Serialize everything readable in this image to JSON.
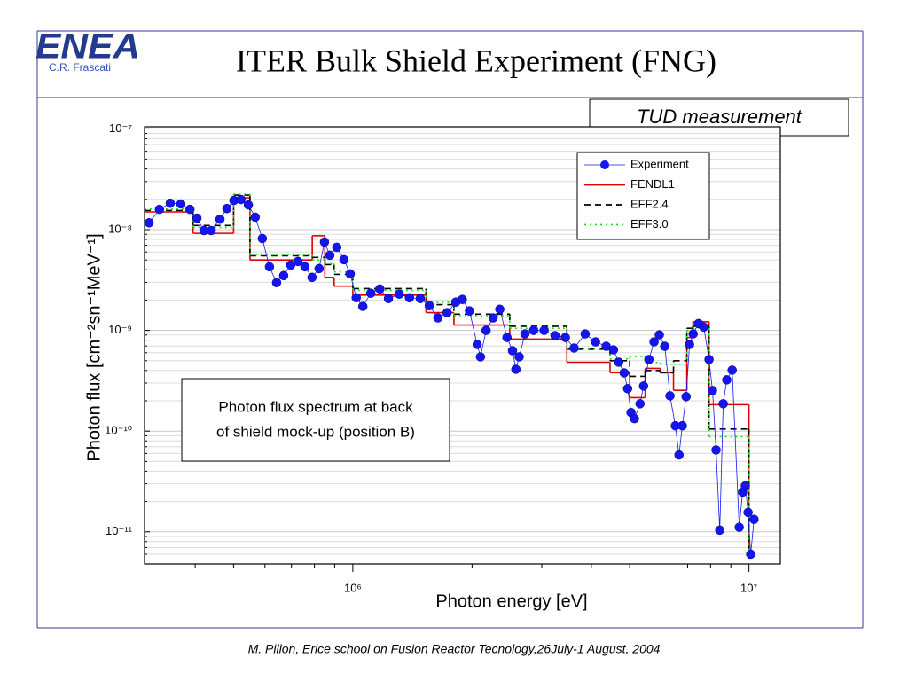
{
  "header": {
    "logo": "ENEA",
    "logo_subtitle": "C.R. Frascati",
    "title": "ITER Bulk Shield Experiment (FNG)"
  },
  "tag": "TUD measurement",
  "footer": "M. Pillon, Erice school on Fusion Reactor Tecnology,26July-1 August, 2004",
  "chart_data": {
    "type": "line",
    "x_label": "Photon energy [eV]",
    "y_label": "Photon flux [cm⁻²sn⁻¹MeV⁻¹]",
    "annotation": [
      "Photon flux spectrum at back",
      "of shield mock-up (position B)"
    ],
    "x_log": true,
    "y_log": true,
    "grid": true,
    "legend": "upper right",
    "xlim": [
      298000,
      12000000
    ],
    "ylim": [
      4.8e-12,
      1.05e-07
    ],
    "xticks": [
      {
        "value": 1000000,
        "label": "10⁶"
      },
      {
        "value": 10000000,
        "label": "10⁷"
      }
    ],
    "xminorticks": [
      400000,
      500000,
      600000,
      700000,
      800000,
      900000,
      2000000,
      3000000,
      4000000,
      5000000,
      6000000,
      7000000,
      8000000,
      9000000
    ],
    "yticks": [
      {
        "value": 1e-07,
        "label": "10⁻⁷"
      },
      {
        "value": 1e-08,
        "label": "10⁻⁸"
      },
      {
        "value": 1e-09,
        "label": "10⁻⁹"
      },
      {
        "value": 1e-10,
        "label": "10⁻¹⁰"
      },
      {
        "value": 1e-11,
        "label": "10⁻¹¹"
      }
    ],
    "yminorticks": [
      6e-12,
      7e-12,
      8e-12,
      9e-12,
      2e-11,
      3e-11,
      4e-11,
      5e-11,
      6e-11,
      7e-11,
      8e-11,
      9e-11,
      2e-10,
      3e-10,
      4e-10,
      5e-10,
      6e-10,
      7e-10,
      8e-10,
      9e-10,
      2e-09,
      3e-09,
      4e-09,
      5e-09,
      6e-09,
      7e-09,
      8e-09,
      9e-09,
      2e-08,
      3e-08,
      4e-08,
      5e-08,
      6e-08,
      7e-08,
      8e-08,
      9e-08
    ],
    "series": [
      {
        "name": "Experiment",
        "color": "#1515f0",
        "style": "markers",
        "x": [
          306000,
          325000,
          346000,
          368000,
          388000,
          404000,
          421000,
          439000,
          462000,
          481000,
          501000,
          522000,
          545000,
          567000,
          591000,
          616000,
          642000,
          669000,
          697000,
          727000,
          757000,
          789000,
          822000,
          848000,
          875000,
          911000,
          950000,
          985000,
          1020000,
          1060000,
          1110000,
          1170000,
          1230000,
          1310000,
          1390000,
          1480000,
          1560000,
          1640000,
          1730000,
          1820000,
          1890000,
          1970000,
          2060000,
          2100000,
          2170000,
          2260000,
          2350000,
          2450000,
          2530000,
          2580000,
          2630000,
          2720000,
          2860000,
          3040000,
          3240000,
          3440000,
          3620000,
          3860000,
          4100000,
          4360000,
          4550000,
          4690000,
          4840000,
          4940000,
          5040000,
          5140000,
          5310000,
          5420000,
          5590000,
          5760000,
          5940000,
          6130000,
          6320000,
          6520000,
          6660000,
          6790000,
          6940000,
          7080000,
          7230000,
          7460000,
          7690000,
          7930000,
          8090000,
          8260000,
          8440000,
          8610000,
          8790000,
          9070000,
          9450000,
          9640000,
          9790000,
          9950000,
          10100000,
          10300000
        ],
        "values": [
          1.17e-08,
          1.59e-08,
          1.83e-08,
          1.8e-08,
          1.59e-08,
          1.3e-08,
          9.8e-09,
          9.8e-09,
          1.27e-08,
          1.62e-08,
          1.95e-08,
          1.99e-08,
          1.76e-08,
          1.33e-08,
          8.17e-09,
          4.28e-09,
          2.98e-09,
          3.5e-09,
          4.46e-09,
          4.83e-09,
          4.28e-09,
          3.36e-09,
          4.11e-09,
          7.54e-09,
          5.57e-09,
          6.68e-09,
          5.03e-09,
          3.64e-09,
          2.11e-09,
          1.73e-09,
          2.34e-09,
          2.58e-09,
          2.07e-09,
          2.29e-09,
          2.11e-09,
          2.07e-09,
          1.76e-09,
          1.33e-09,
          1.5e-09,
          1.91e-09,
          2.03e-09,
          1.56e-09,
          7.24e-10,
          5.46e-10,
          1e-09,
          1.33e-09,
          1.62e-09,
          8.5e-10,
          6.28e-10,
          4.11e-10,
          5.46e-10,
          9.23e-10,
          1e-09,
          1e-09,
          8.86e-10,
          8.5e-10,
          6.68e-10,
          9.23e-10,
          7.69e-10,
          6.95e-10,
          6.41e-10,
          4.83e-10,
          3.79e-10,
          2.64e-10,
          1.53e-10,
          1.33e-10,
          1.87e-10,
          2.8e-10,
          5.14e-10,
          7.69e-10,
          9.04e-10,
          6.95e-10,
          2.24e-10,
          1.13e-10,
          5.8e-11,
          1.13e-10,
          2.2e-10,
          7.24e-10,
          9.23e-10,
          1.17e-09,
          1.08e-09,
          5.14e-10,
          2.53e-10,
          6.5e-11,
          1.04e-11,
          1.87e-10,
          3.23e-10,
          4.03e-10,
          1.11e-11,
          2.48e-11,
          2.86e-11,
          1.56e-11,
          6e-12,
          1.33e-11
        ]
      },
      {
        "name": "FENDL1",
        "color": "#e00000",
        "style": "step",
        "dash": "solid",
        "bins": [
          298000,
          395000,
          500000,
          550000,
          790000,
          850000,
          897000,
          1000000,
          1530000,
          1800000,
          2490000,
          3470000,
          4460000,
          5000000,
          5470000,
          5970000,
          6450000,
          6970000,
          7220000,
          7930000,
          10000000
        ],
        "values": [
          1.5e-08,
          9.2e-09,
          2.07e-08,
          5e-09,
          8.7e-09,
          3.36e-09,
          2.75e-09,
          2.24e-09,
          1.5e-09,
          1.13e-09,
          8.2e-10,
          4.83e-10,
          3.8e-10,
          2.15e-10,
          4.2e-10,
          3.8e-10,
          2.54e-10,
          8.5e-10,
          1.22e-09,
          1.83e-10
        ]
      },
      {
        "name": "EFF2.4",
        "color": "#000000",
        "style": "step",
        "dash": "dashed",
        "bins": [
          298000,
          395000,
          500000,
          550000,
          790000,
          850000,
          897000,
          1000000,
          1530000,
          1800000,
          2490000,
          3470000,
          4460000,
          5000000,
          5470000,
          5970000,
          6450000,
          6970000,
          7220000,
          7930000,
          10000000
        ],
        "values": [
          1.55e-08,
          1.1e-08,
          2.2e-08,
          5.5e-09,
          5.3e-09,
          4.5e-09,
          3.6e-09,
          2.6e-09,
          1.8e-09,
          1.45e-09,
          1.1e-09,
          6.5e-10,
          5e-10,
          3.5e-10,
          4e-10,
          3.8e-10,
          5e-10,
          1.05e-09,
          1.1e-09,
          1.05e-10
        ]
      },
      {
        "name": "EFF3.0",
        "color": "#22e022",
        "style": "step",
        "dash": "dotted",
        "bins": [
          298000,
          395000,
          500000,
          550000,
          790000,
          850000,
          897000,
          1000000,
          1530000,
          1800000,
          2490000,
          3470000,
          4460000,
          5000000,
          5470000,
          5970000,
          6450000,
          6970000,
          7220000,
          7930000,
          10000000
        ],
        "values": [
          1.6e-08,
          1.05e-08,
          2.25e-08,
          5.6e-09,
          5e-09,
          4.6e-09,
          3.8e-09,
          2.5e-09,
          1.9e-09,
          1.4e-09,
          1.05e-09,
          6.6e-10,
          5.2e-10,
          5.5e-10,
          4.8e-10,
          4.6e-10,
          4.6e-10,
          1e-09,
          1.05e-09,
          8.8e-11
        ]
      }
    ]
  }
}
